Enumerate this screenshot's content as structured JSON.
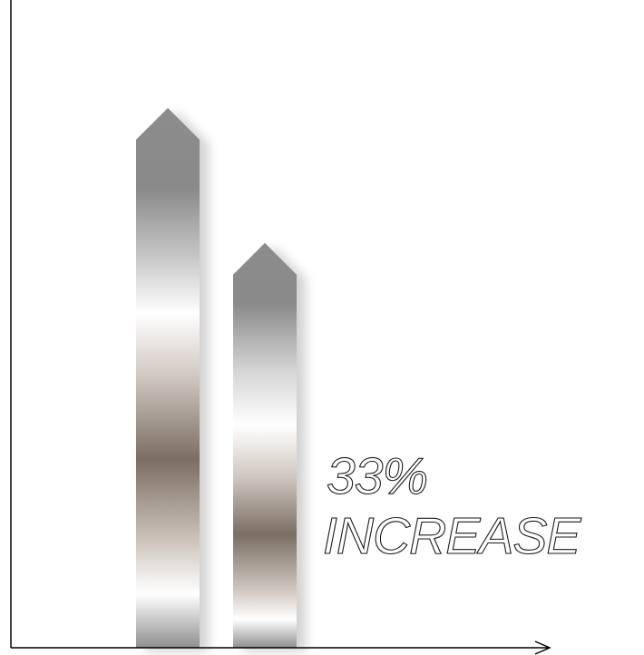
{
  "chart_data": {
    "type": "bar",
    "categories": [
      "",
      ""
    ],
    "values": [
      100,
      75
    ],
    "ylim": [
      0,
      120
    ],
    "grid": false,
    "legend": "none",
    "annotation": {
      "line1": "33%",
      "line2": "INCREASE"
    },
    "bar_style": "metallic-arrow",
    "colors": {
      "metal_dark": "#8a8a8a",
      "metal_light": "#ffffff",
      "metal_brown": "#7a6d62",
      "axis": "#000000",
      "text": "#1a1a1a"
    }
  }
}
